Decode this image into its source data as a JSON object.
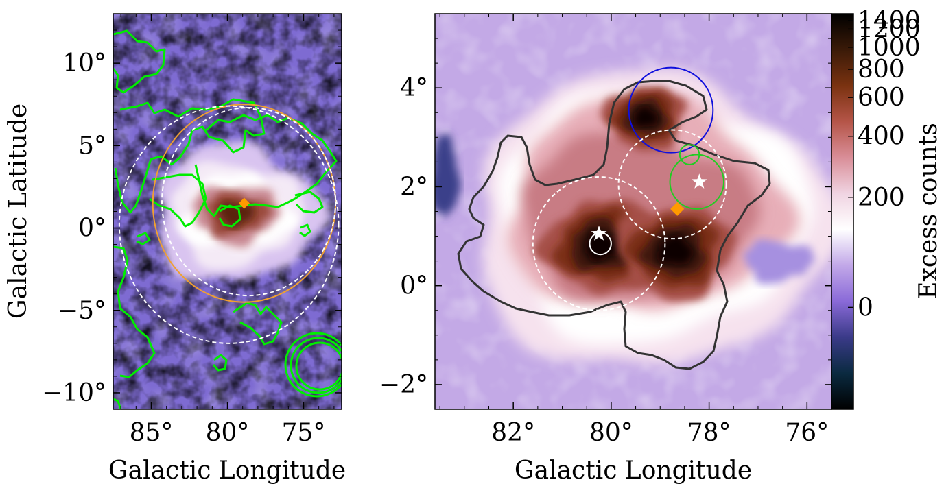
{
  "chart_data": [
    {
      "type": "heatmap",
      "panel": "left",
      "xlabel": "Galactic Longitude",
      "ylabel": "Galactic Latitude",
      "xlim": [
        87.5,
        72.5
      ],
      "ylim": [
        -11,
        13
      ],
      "x_ticks": [
        {
          "value": 85,
          "label": "85°"
        },
        {
          "value": 80,
          "label": "80°"
        },
        {
          "value": 75,
          "label": "75°"
        }
      ],
      "y_ticks": [
        {
          "value": 10,
          "label": "10°"
        },
        {
          "value": 5,
          "label": "5°"
        },
        {
          "value": 0,
          "label": "0°"
        },
        {
          "value": -5,
          "label": "−5°"
        },
        {
          "value": -10,
          "label": "−10°"
        }
      ],
      "colormap": "cubehelix-like (black–blue–purple–white–red–black)",
      "hotspot": {
        "l": 79,
        "b": 1.2
      },
      "marker": {
        "shape": "diamond",
        "color": "#ff9a00",
        "l": 78.9,
        "b": 1.5
      },
      "circles": [
        {
          "style": "solid",
          "color": "#f0a030",
          "l": 78.9,
          "b": 1.5,
          "r": 6.0
        },
        {
          "style": "dashed",
          "color": "#ffffff",
          "l": 79.9,
          "b": 0.2,
          "r": 7.2
        },
        {
          "style": "dashed",
          "color": "#ffffff",
          "l": 78.6,
          "b": 1.6,
          "r": 5.7
        }
      ],
      "contour_color": "#00ee00"
    },
    {
      "type": "heatmap",
      "panel": "right",
      "xlabel": "Galactic Longitude",
      "xlim": [
        83.6,
        75.5
      ],
      "ylim": [
        -2.5,
        5.5
      ],
      "x_ticks": [
        {
          "value": 82,
          "label": "82°"
        },
        {
          "value": 80,
          "label": "80°"
        },
        {
          "value": 78,
          "label": "78°"
        },
        {
          "value": 76,
          "label": "76°"
        }
      ],
      "y_ticks": [
        {
          "value": 4,
          "label": "4°"
        },
        {
          "value": 2,
          "label": "2°"
        },
        {
          "value": 0,
          "label": "0°"
        },
        {
          "value": -2,
          "label": "−2°"
        }
      ],
      "colorbar": {
        "label": "Excess counts",
        "ticks": [
          {
            "value": 1400,
            "label": "1400"
          },
          {
            "value": 1200,
            "label": "1200"
          },
          {
            "value": 1000,
            "label": "1000"
          },
          {
            "value": 800,
            "label": "800"
          },
          {
            "value": 600,
            "label": "600"
          },
          {
            "value": 400,
            "label": "400"
          },
          {
            "value": 200,
            "label": "200"
          },
          {
            "value": 0,
            "label": "0"
          }
        ],
        "colors": [
          "#000000",
          "#3a1a08",
          "#7a3210",
          "#b55548",
          "#d98e98",
          "#f0d4e2",
          "#ffffff",
          "#c2a8e8",
          "#8a6ad8",
          "#3a3a88",
          "#0a2a40",
          "#000000"
        ]
      },
      "hotspots": [
        {
          "l": 80.2,
          "b": 0.8,
          "strength": 1.0
        },
        {
          "l": 78.7,
          "b": 0.7,
          "strength": 1.0
        },
        {
          "l": 79.3,
          "b": 3.4,
          "strength": 0.7
        }
      ],
      "stars": [
        {
          "l": 80.25,
          "b": 1.05,
          "color": "#ffffff"
        },
        {
          "l": 78.2,
          "b": 2.1,
          "color": "#ffffff"
        }
      ],
      "marker": {
        "shape": "diamond",
        "color": "#ff9a00",
        "l": 78.65,
        "b": 1.55
      },
      "circles": [
        {
          "style": "solid",
          "color": "#1010dd",
          "l": 78.78,
          "b": 3.55,
          "r": 0.86
        },
        {
          "style": "dashed",
          "color": "#ffffff",
          "l": 80.25,
          "b": 0.85,
          "r": 1.35
        },
        {
          "style": "dashed",
          "color": "#ffffff",
          "l": 78.75,
          "b": 2.05,
          "r": 1.1
        },
        {
          "style": "solid",
          "color": "#22cc22",
          "l": 78.25,
          "b": 2.1,
          "r": 0.55
        },
        {
          "style": "solid",
          "color": "#22cc22",
          "l": 78.4,
          "b": 2.65,
          "r": 0.2
        },
        {
          "style": "solid",
          "color": "#ffffff",
          "l": 80.22,
          "b": 0.85,
          "r": 0.22
        }
      ],
      "contour_color": "#333333"
    }
  ]
}
